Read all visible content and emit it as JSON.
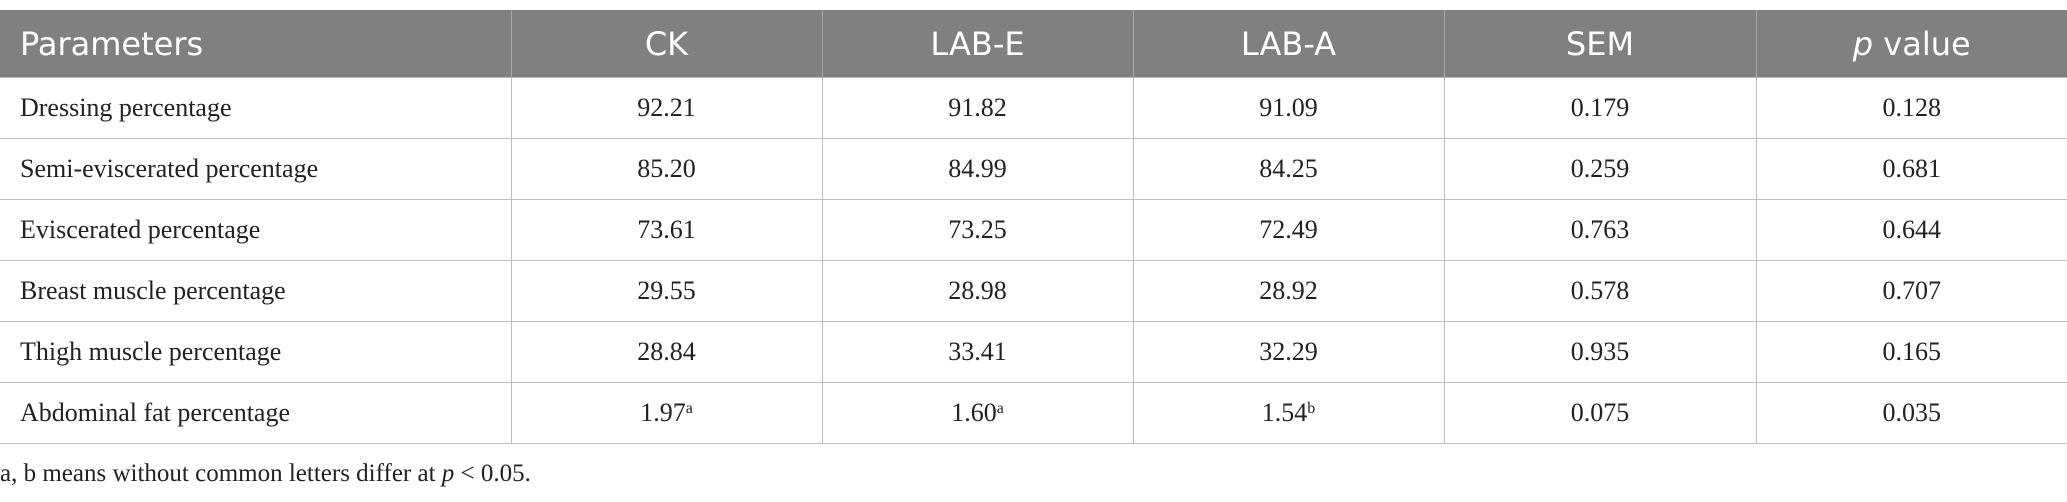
{
  "table": {
    "headers": [
      "Parameters",
      "CK",
      "LAB-E",
      "LAB-A",
      "SEM",
      {
        "italic": "p",
        "text": " value"
      }
    ],
    "rows": [
      [
        "Dressing percentage",
        "92.21",
        "91.82",
        "91.09",
        "0.179",
        "0.128"
      ],
      [
        "Semi-eviscerated percentage",
        "85.20",
        "84.99",
        "84.25",
        "0.259",
        "0.681"
      ],
      [
        "Eviscerated percentage",
        "73.61",
        "73.25",
        "72.49",
        "0.763",
        "0.644"
      ],
      [
        "Breast muscle percentage",
        "29.55",
        "28.98",
        "28.92",
        "0.578",
        "0.707"
      ],
      [
        "Thigh muscle percentage",
        "28.84",
        "33.41",
        "32.29",
        "0.935",
        "0.165"
      ],
      [
        "Abdominal fat percentage",
        {
          "value": "1.97",
          "sup": "a"
        },
        {
          "value": "1.60",
          "sup": "a"
        },
        {
          "value": "1.54",
          "sup": "b"
        },
        "0.075",
        "0.035"
      ]
    ]
  },
  "footnote": {
    "before": "a, b means without common letters differ at ",
    "italic": "p",
    "after": " < 0.05."
  }
}
